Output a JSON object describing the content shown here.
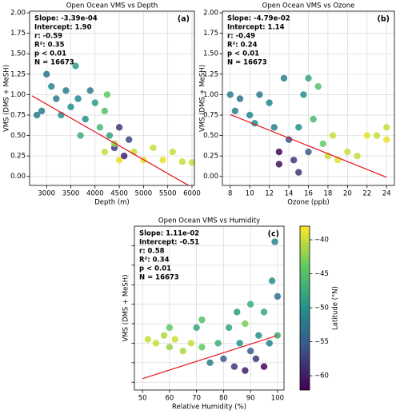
{
  "chart_data": [
    {
      "type": "scatter",
      "title": "Open Ocean VMS vs Depth",
      "panel_label": "(a)",
      "annotations": [
        "Slope: -3.39e-04",
        "Intercept: 1.90",
        "r: -0.59",
        "R²: 0.35",
        "p < 0.01",
        "N = 16673"
      ],
      "xlabel": "Depth (m)",
      "ylabel": "VMS (DMS + MeSH)",
      "xlim": [
        2650,
        6050
      ],
      "ylim": [
        -0.11,
        2.02
      ],
      "xticks": [
        3000,
        3500,
        4000,
        4500,
        5000,
        5500,
        6000
      ],
      "yticks": [
        {
          "value": 0,
          "label": "0.00"
        },
        {
          "value": 0.25,
          "label": "0.25"
        },
        {
          "value": 0.5,
          "label": "0.50"
        },
        {
          "value": 0.75,
          "label": "0.75"
        },
        {
          "value": 1,
          "label": "1.00"
        },
        {
          "value": 1.25,
          "label": "1.25"
        },
        {
          "value": 1.5,
          "label": "1.50"
        },
        {
          "value": 1.75,
          "label": "1.75"
        },
        {
          "value": 2,
          "label": "2.00"
        }
      ],
      "ytick_labels": true,
      "grid": true,
      "x": [
        2800,
        2900,
        3000,
        3100,
        3200,
        3300,
        3400,
        3500,
        3600,
        3650,
        3800,
        3900,
        4000,
        4100,
        4200,
        4250,
        4300,
        4400,
        4500,
        4600,
        4700,
        4200,
        4500,
        4800,
        5000,
        5200,
        5400,
        5600,
        5800,
        6000,
        4400,
        3700
      ],
      "y": [
        0.75,
        0.8,
        1.25,
        1.1,
        0.95,
        0.75,
        1.05,
        0.85,
        1.35,
        0.95,
        0.7,
        1.05,
        0.9,
        0.6,
        0.8,
        1.0,
        0.5,
        0.35,
        0.6,
        0.25,
        0.45,
        0.3,
        0.2,
        0.3,
        0.2,
        0.35,
        0.2,
        0.3,
        0.18,
        0.17,
        0.4,
        0.5
      ],
      "c": [
        -52,
        -52,
        -53,
        -51,
        -52,
        -50,
        -52,
        -50,
        -49,
        -51,
        -50,
        -52,
        -49,
        -46,
        -45,
        -44,
        -48,
        -58,
        -58,
        -60,
        -57,
        -40,
        -39,
        -40,
        -39,
        -40,
        -39,
        -40,
        -40,
        -40,
        -42,
        -47
      ],
      "fit": {
        "color": "#e8141c",
        "x": [
          2700,
          6000
        ],
        "y": [
          0.985,
          -0.134
        ]
      }
    },
    {
      "type": "scatter",
      "title": "Open Ocean VMS vs Ozone",
      "panel_label": "(b)",
      "annotations": [
        "Slope: -4.79e-02",
        "Intercept: 1.14",
        "r: -0.49",
        "R²: 0.24",
        "p < 0.01",
        "N = 16673"
      ],
      "xlabel": "Ozone (ppb)",
      "ylabel": "VMS (DMS + MeSH)",
      "xlim": [
        7.2,
        24.8
      ],
      "ylim": [
        -0.11,
        2.02
      ],
      "xticks": [
        8,
        10,
        12,
        14,
        16,
        18,
        20,
        22,
        24
      ],
      "yticks": [
        {
          "value": 0,
          "label": "0.00"
        },
        {
          "value": 0.25,
          "label": "0.25"
        },
        {
          "value": 0.5,
          "label": "0.50"
        },
        {
          "value": 0.75,
          "label": "0.75"
        },
        {
          "value": 1,
          "label": "1.00"
        },
        {
          "value": 1.25,
          "label": "1.25"
        },
        {
          "value": 1.5,
          "label": "1.50"
        },
        {
          "value": 1.75,
          "label": "1.75"
        },
        {
          "value": 2,
          "label": "2.00"
        }
      ],
      "ytick_labels": true,
      "grid": true,
      "x": [
        8,
        8.5,
        9,
        10,
        10.5,
        11,
        12,
        12.5,
        13,
        13,
        14,
        14.5,
        15,
        15.5,
        16,
        16,
        16.5,
        17,
        17.5,
        18,
        18.5,
        19,
        20,
        21,
        22,
        23,
        24,
        24,
        15,
        13.5
      ],
      "y": [
        1.0,
        0.8,
        0.95,
        0.75,
        0.65,
        1.0,
        0.9,
        0.6,
        0.3,
        0.15,
        0.45,
        0.2,
        0.6,
        1.0,
        1.2,
        0.3,
        0.7,
        1.1,
        0.4,
        0.25,
        0.5,
        0.2,
        0.3,
        0.25,
        0.5,
        0.5,
        0.6,
        0.45,
        0.05,
        1.2
      ],
      "c": [
        -52,
        -52,
        -53,
        -51,
        -50,
        -52,
        -51,
        -52,
        -62,
        -61,
        -56,
        -58,
        -50,
        -50,
        -48,
        -55,
        -46,
        -45,
        -44,
        -40,
        -40,
        -39,
        -40,
        -40,
        -39,
        -40,
        -40,
        -39,
        -58,
        -52
      ],
      "fit": {
        "color": "#e8141c",
        "x": [
          8,
          24
        ],
        "y": [
          0.757,
          -0.01
        ]
      }
    },
    {
      "type": "scatter",
      "title": "Open Ocean VMS vs Humidity",
      "panel_label": "(c)",
      "annotations": [
        "Slope: 1.11e-02",
        "Intercept: -0.51",
        "r: 0.58",
        "R²: 0.34",
        "p < 0.01",
        "N = 16673"
      ],
      "xlabel": "Relative Humidity (%)",
      "ylabel": "VMS (DMS + MeSH)",
      "xlim": [
        47,
        102.4
      ],
      "ylim": [
        -0.1,
        2.0
      ],
      "xticks": [
        50,
        60,
        70,
        80,
        90,
        100
      ],
      "yticks": [
        0,
        0.25,
        0.5,
        0.75,
        1,
        1.25,
        1.5,
        1.75
      ],
      "ytick_labels": false,
      "grid": true,
      "x": [
        52,
        55,
        58,
        60,
        62,
        65,
        68,
        70,
        72,
        75,
        78,
        80,
        82,
        84,
        85,
        86,
        88,
        88,
        90,
        90,
        92,
        93,
        95,
        95,
        97,
        98,
        99,
        100,
        100,
        60,
        72
      ],
      "y": [
        0.55,
        0.5,
        0.6,
        0.45,
        0.55,
        0.4,
        0.5,
        0.7,
        0.45,
        0.25,
        0.5,
        0.3,
        0.7,
        0.2,
        0.9,
        0.5,
        0.15,
        0.75,
        0.4,
        1.0,
        0.3,
        0.6,
        0.2,
        0.9,
        0.5,
        1.3,
        1.8,
        0.6,
        1.1,
        0.7,
        0.8
      ],
      "c": [
        -40,
        -40,
        -41,
        -42,
        -40,
        -41,
        -40,
        -48,
        -44,
        -52,
        -47,
        -55,
        -48,
        -58,
        -49,
        -50,
        -60,
        -43,
        -55,
        -47,
        -58,
        -50,
        -62,
        -48,
        -52,
        -50,
        -51,
        -47,
        -53,
        -44,
        -45
      ],
      "fit": {
        "color": "#e8141c",
        "x": [
          50,
          100
        ],
        "y": [
          0.045,
          0.6
        ]
      }
    },
    {
      "type": "colorbar",
      "label": "Latitude (°N)",
      "colormap": "viridis",
      "lim": [
        -62.1,
        -38
      ],
      "ticks": [
        {
          "value": -40,
          "label": "−40"
        },
        {
          "value": -45,
          "label": "−45"
        },
        {
          "value": -50,
          "label": "−50"
        },
        {
          "value": -55,
          "label": "−55"
        },
        {
          "value": -60,
          "label": "−60"
        }
      ]
    }
  ]
}
